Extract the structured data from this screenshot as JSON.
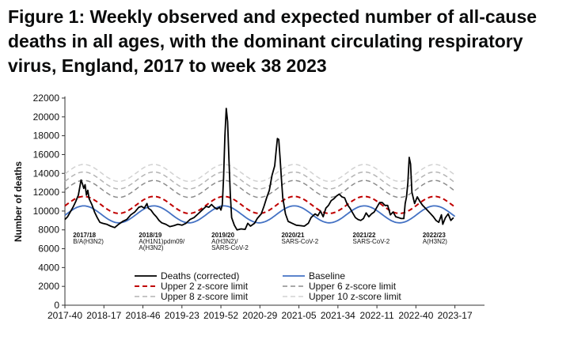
{
  "title": "Figure 1: Weekly observed and expected number of all-cause deaths in all ages, with the dominant circulating respiratory virus, England, 2017 to week 38 2023",
  "chart_data": {
    "type": "line",
    "title": "Figure 1: Weekly observed and expected number of all-cause deaths in all ages, with the dominant circulating respiratory virus, England, 2017 to week 38 2023",
    "xlabel": "",
    "ylabel": "Number of deaths",
    "ylim": [
      0,
      22000
    ],
    "yticks": [
      0,
      2000,
      4000,
      6000,
      8000,
      10000,
      12000,
      14000,
      16000,
      18000,
      20000,
      22000
    ],
    "yticklabels": [
      "0",
      "2000",
      "4000",
      "6000",
      "8000",
      "10000",
      "12000",
      "14000",
      "16000",
      "18000",
      "20000",
      "22000"
    ],
    "xlim": [
      0,
      312
    ],
    "xticks": [
      0,
      29,
      58,
      87,
      116,
      145,
      174,
      203,
      232,
      261,
      290
    ],
    "xticklabels": [
      "2017-40",
      "2018-17",
      "2018-46",
      "2019-23",
      "2019-52",
      "2020-29",
      "2021-05",
      "2021-34",
      "2022-11",
      "2022-40",
      "2023-17"
    ],
    "grid": false,
    "legend_position": "bottom",
    "season_labels": [
      {
        "x": 6,
        "year": "2017/18",
        "virus": [
          "B/A(H3N2)"
        ]
      },
      {
        "x": 55,
        "year": "2018/19",
        "virus": [
          "A(H1N1)pdm09/",
          "A(H3N2)"
        ]
      },
      {
        "x": 109,
        "year": "2019/20",
        "virus": [
          "A(H3N2)/",
          "SARS-CoV-2"
        ]
      },
      {
        "x": 161,
        "year": "2020/21",
        "virus": [
          "SARS-CoV-2"
        ]
      },
      {
        "x": 214,
        "year": "2021/22",
        "virus": [
          "SARS-CoV-2"
        ]
      },
      {
        "x": 266,
        "year": "2022/23",
        "virus": [
          "A(H3N2)"
        ]
      }
    ],
    "baseline": {
      "mean": 9650,
      "amplitude": 900,
      "period_weeks": 52.18,
      "peak_week": 14
    },
    "series": [
      {
        "name": "Deaths (corrected)",
        "color": "#000000",
        "dash": "",
        "width": 1.8,
        "points": [
          [
            0,
            9100
          ],
          [
            2,
            9400
          ],
          [
            4,
            9900
          ],
          [
            6,
            10400
          ],
          [
            8,
            11000
          ],
          [
            10,
            11700
          ],
          [
            11,
            12500
          ],
          [
            12,
            13300
          ],
          [
            13,
            12900
          ],
          [
            14,
            12400
          ],
          [
            15,
            12800
          ],
          [
            16,
            11700
          ],
          [
            17,
            12200
          ],
          [
            18,
            11300
          ],
          [
            20,
            10700
          ],
          [
            22,
            9900
          ],
          [
            24,
            9300
          ],
          [
            26,
            8800
          ],
          [
            28,
            8700
          ],
          [
            31,
            8600
          ],
          [
            34,
            8400
          ],
          [
            37,
            8250
          ],
          [
            40,
            8600
          ],
          [
            43,
            8900
          ],
          [
            46,
            9100
          ],
          [
            49,
            9600
          ],
          [
            52,
            9900
          ],
          [
            55,
            10400
          ],
          [
            57,
            10500
          ],
          [
            59,
            10300
          ],
          [
            61,
            10800
          ],
          [
            62,
            10300
          ],
          [
            64,
            10100
          ],
          [
            66,
            9700
          ],
          [
            68,
            9400
          ],
          [
            70,
            9000
          ],
          [
            72,
            8750
          ],
          [
            75,
            8600
          ],
          [
            78,
            8350
          ],
          [
            81,
            8450
          ],
          [
            84,
            8600
          ],
          [
            87,
            8500
          ],
          [
            90,
            8700
          ],
          [
            93,
            9100
          ],
          [
            96,
            9300
          ],
          [
            99,
            9700
          ],
          [
            102,
            10100
          ],
          [
            105,
            10500
          ],
          [
            107,
            10400
          ],
          [
            109,
            10700
          ],
          [
            111,
            10400
          ],
          [
            113,
            10200
          ],
          [
            115,
            10400
          ],
          [
            116,
            10100
          ],
          [
            117,
            10700
          ],
          [
            118,
            13500
          ],
          [
            119,
            18000
          ],
          [
            120,
            20900
          ],
          [
            121,
            19500
          ],
          [
            122,
            15500
          ],
          [
            123,
            11800
          ],
          [
            124,
            9300
          ],
          [
            126,
            8500
          ],
          [
            128,
            8000
          ],
          [
            131,
            8100
          ],
          [
            134,
            8050
          ],
          [
            136,
            8700
          ],
          [
            138,
            8400
          ],
          [
            141,
            8700
          ],
          [
            143,
            9200
          ],
          [
            146,
            9700
          ],
          [
            148,
            10500
          ],
          [
            150,
            11400
          ],
          [
            152,
            12200
          ],
          [
            154,
            13800
          ],
          [
            156,
            14800
          ],
          [
            157,
            16300
          ],
          [
            158,
            17700
          ],
          [
            159,
            17600
          ],
          [
            160,
            15600
          ],
          [
            161,
            13400
          ],
          [
            162,
            11400
          ],
          [
            164,
            9700
          ],
          [
            166,
            8900
          ],
          [
            169,
            8700
          ],
          [
            172,
            8500
          ],
          [
            175,
            8450
          ],
          [
            178,
            8400
          ],
          [
            181,
            8700
          ],
          [
            183,
            9300
          ],
          [
            186,
            9700
          ],
          [
            188,
            9500
          ],
          [
            190,
            10000
          ],
          [
            192,
            9400
          ],
          [
            194,
            10300
          ],
          [
            196,
            10600
          ],
          [
            198,
            11100
          ],
          [
            200,
            11300
          ],
          [
            202,
            11600
          ],
          [
            204,
            11800
          ],
          [
            206,
            11500
          ],
          [
            208,
            11400
          ],
          [
            210,
            10700
          ],
          [
            212,
            10300
          ],
          [
            214,
            9800
          ],
          [
            216,
            9300
          ],
          [
            218,
            9100
          ],
          [
            220,
            9000
          ],
          [
            222,
            9200
          ],
          [
            224,
            9800
          ],
          [
            226,
            9400
          ],
          [
            228,
            9700
          ],
          [
            230,
            9900
          ],
          [
            232,
            10400
          ],
          [
            234,
            10900
          ],
          [
            236,
            10900
          ],
          [
            238,
            10600
          ],
          [
            240,
            10600
          ],
          [
            242,
            9600
          ],
          [
            244,
            9900
          ],
          [
            246,
            9400
          ],
          [
            248,
            9300
          ],
          [
            250,
            9200
          ],
          [
            252,
            9200
          ],
          [
            253,
            10800
          ],
          [
            254,
            11500
          ],
          [
            255,
            13000
          ],
          [
            256,
            15700
          ],
          [
            257,
            15000
          ],
          [
            258,
            12000
          ],
          [
            260,
            10800
          ],
          [
            262,
            11500
          ],
          [
            264,
            11000
          ],
          [
            266,
            10600
          ],
          [
            268,
            10300
          ],
          [
            270,
            10000
          ],
          [
            272,
            9700
          ],
          [
            274,
            9400
          ],
          [
            276,
            9000
          ],
          [
            278,
            8800
          ],
          [
            280,
            9600
          ],
          [
            281,
            8600
          ],
          [
            283,
            9300
          ],
          [
            285,
            9700
          ],
          [
            287,
            9000
          ],
          [
            289,
            9300
          ]
        ]
      },
      {
        "name": "Baseline",
        "color": "#4472c4",
        "dash": "",
        "width": 1.8,
        "offset": 0
      },
      {
        "name": "Upper 2 z-score limit",
        "color": "#c00000",
        "dash": "6,4",
        "width": 2.0,
        "offset": 1000
      },
      {
        "name": "Upper 6 z-score limit",
        "color": "#8c8c8c",
        "dash": "6,4",
        "width": 1.5,
        "offset": 2700
      },
      {
        "name": "Upper 8 z-score limit",
        "color": "#b4b4b4",
        "dash": "6,4",
        "width": 1.5,
        "offset": 3600
      },
      {
        "name": "Upper 10 z-score limit",
        "color": "#d2d2d2",
        "dash": "6,4",
        "width": 1.5,
        "offset": 4400
      }
    ]
  }
}
